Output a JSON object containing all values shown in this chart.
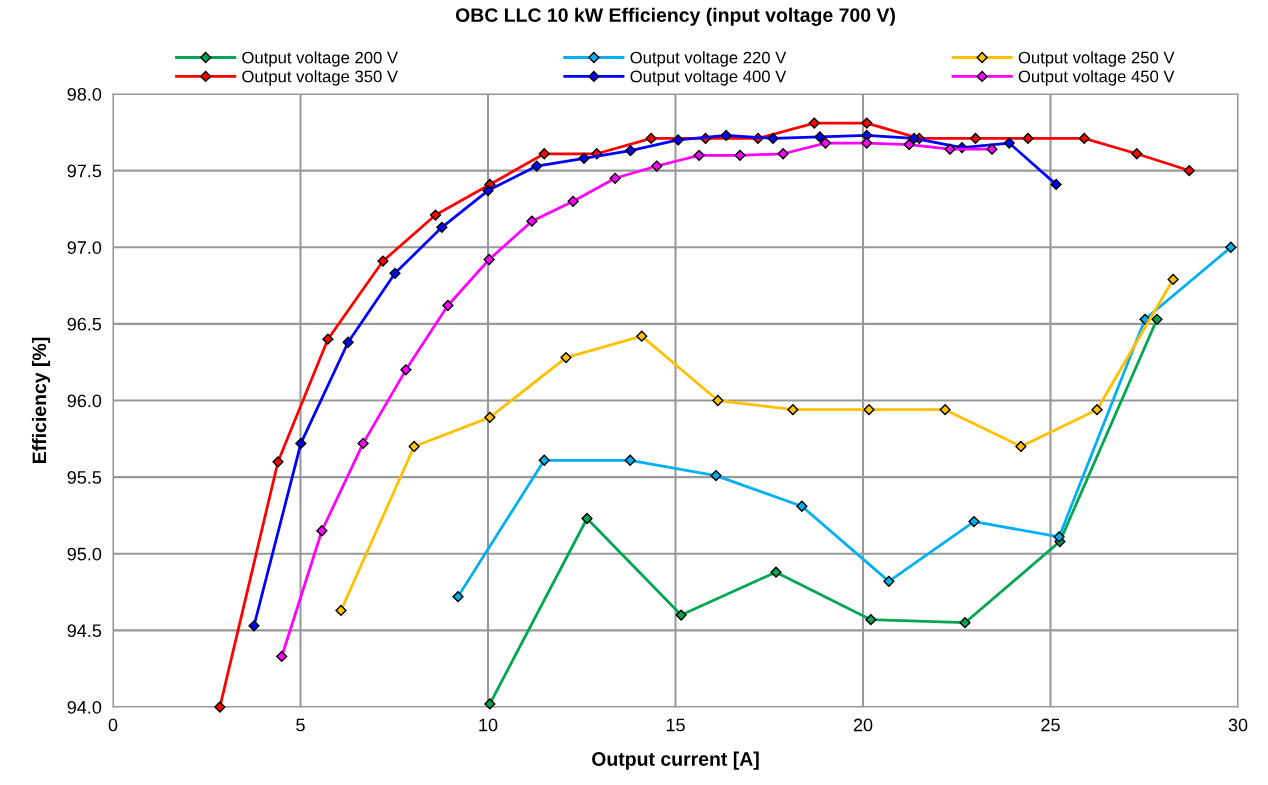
{
  "chart_data": {
    "type": "line",
    "title": "OBC LLC 10 kW Efficiency (input voltage 700 V)",
    "xlabel": "Output current [A]",
    "ylabel": "Efficiency [%]",
    "xlim": [
      0,
      30
    ],
    "xticks": [
      0,
      5,
      10,
      15,
      20,
      25,
      30
    ],
    "ylim": [
      94,
      98
    ],
    "yticks": [
      {
        "value": 94,
        "label": "94.0"
      },
      {
        "value": 94.5,
        "label": "94.5"
      },
      {
        "value": 95,
        "label": "95.0"
      },
      {
        "value": 95.5,
        "label": "95.5"
      },
      {
        "value": 96,
        "label": "96.0"
      },
      {
        "value": 96.5,
        "label": "96.5"
      },
      {
        "value": 97,
        "label": "97.0"
      },
      {
        "value": 97.5,
        "label": "97.5"
      },
      {
        "value": 98,
        "label": "98.0"
      }
    ],
    "grid": true,
    "legend": "top",
    "marker": "diamond",
    "line_style": "solid",
    "series": [
      {
        "name": "Output voltage 200 V",
        "color": "#00a650",
        "x": [
          10.05,
          12.64,
          15.15,
          17.68,
          20.21,
          22.72,
          25.25,
          27.84
        ],
        "values": [
          94.02,
          95.23,
          94.6,
          94.88,
          94.57,
          94.55,
          95.08,
          96.53
        ]
      },
      {
        "name": "Output voltage 350 V",
        "color": "#ff0000",
        "x": [
          2.85,
          4.4,
          5.73,
          7.2,
          8.6,
          10.05,
          11.5,
          12.9,
          14.35,
          15.8,
          17.2,
          18.7,
          20.1,
          21.5,
          23.0,
          24.4,
          25.9,
          27.3,
          28.7
        ],
        "values": [
          94.0,
          95.6,
          96.4,
          96.91,
          97.21,
          97.41,
          97.61,
          97.61,
          97.71,
          97.71,
          97.71,
          97.81,
          97.81,
          97.71,
          97.71,
          97.71,
          97.71,
          97.61,
          97.5
        ]
      },
      {
        "name": "Output voltage 220 V",
        "color": "#00b0f0",
        "x": [
          9.2,
          11.5,
          13.79,
          16.08,
          18.37,
          20.69,
          22.96,
          25.23,
          27.52,
          29.81
        ],
        "values": [
          94.72,
          95.61,
          95.61,
          95.51,
          95.31,
          94.82,
          95.21,
          95.11,
          96.53,
          97.0
        ]
      },
      {
        "name": "Output voltage 400 V",
        "color": "#0000ff",
        "x": [
          3.76,
          5.01,
          6.27,
          7.52,
          8.77,
          10.0,
          11.3,
          12.56,
          13.8,
          15.07,
          16.35,
          17.6,
          18.85,
          20.1,
          21.36,
          22.64,
          23.9,
          25.15
        ],
        "values": [
          94.53,
          95.72,
          96.38,
          96.83,
          97.13,
          97.37,
          97.53,
          97.58,
          97.63,
          97.7,
          97.73,
          97.71,
          97.72,
          97.73,
          97.71,
          97.65,
          97.68,
          97.41
        ]
      },
      {
        "name": "Output voltage 250 V",
        "color": "#ffc000",
        "x": [
          6.08,
          8.03,
          10.05,
          12.08,
          14.1,
          16.13,
          18.13,
          20.16,
          22.19,
          24.21,
          26.24,
          28.27
        ],
        "values": [
          94.63,
          95.7,
          95.89,
          96.28,
          96.42,
          96.0,
          95.94,
          95.94,
          95.94,
          95.7,
          95.94,
          96.79
        ]
      },
      {
        "name": "Output voltage 450 V",
        "color": "#ff00ff",
        "x": [
          4.5,
          5.57,
          6.67,
          7.81,
          8.93,
          10.03,
          11.17,
          12.27,
          13.39,
          14.5,
          15.63,
          16.72,
          17.87,
          19.0,
          20.1,
          21.23,
          22.32,
          23.44
        ],
        "values": [
          94.33,
          95.15,
          95.72,
          96.2,
          96.62,
          96.92,
          97.17,
          97.3,
          97.45,
          97.53,
          97.6,
          97.6,
          97.61,
          97.68,
          97.68,
          97.67,
          97.64,
          97.64
        ]
      }
    ]
  }
}
